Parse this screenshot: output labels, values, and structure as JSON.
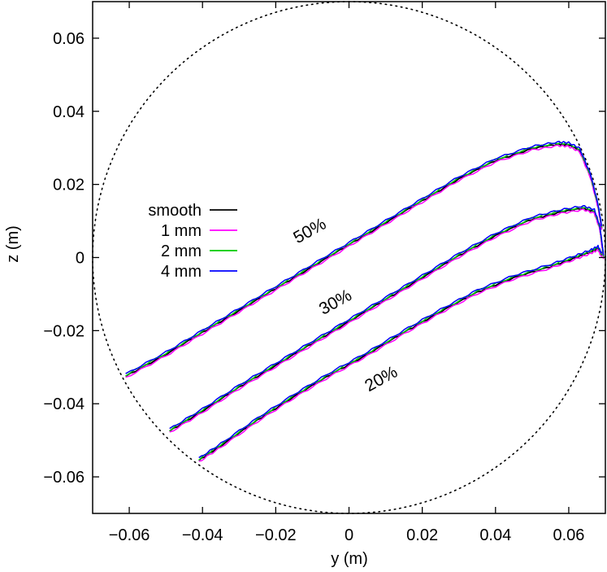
{
  "chart_data": {
    "type": "line",
    "xlabel": "y (m)",
    "ylabel": "z (m)",
    "xlim": [
      -0.07,
      0.07
    ],
    "ylim": [
      -0.07,
      0.07
    ],
    "x_ticks": [
      -0.06,
      -0.04,
      -0.02,
      0,
      0.02,
      0.04,
      0.06
    ],
    "x_tick_labels": [
      "−0.06",
      "−0.04",
      "−0.02",
      "0",
      "0.02",
      "0.04",
      "0.06"
    ],
    "y_ticks": [
      -0.06,
      -0.04,
      -0.02,
      0,
      0.02,
      0.04,
      0.06
    ],
    "y_tick_labels": [
      "−0.06",
      "−0.04",
      "−0.02",
      "0",
      "0.02",
      "0.04",
      "0.06"
    ],
    "grid": false,
    "legend_position": "left",
    "boundary_circle": {
      "center": [
        0,
        0
      ],
      "radius": 0.07,
      "style": "dotted"
    },
    "series": [
      {
        "name": "smooth",
        "color": "#000000"
      },
      {
        "name": "1 mm",
        "color": "#ff00ff"
      },
      {
        "name": "2 mm",
        "color": "#00cc00"
      },
      {
        "name": "4 mm",
        "color": "#0000ff"
      }
    ],
    "curves": [
      {
        "label": "50%",
        "label_pos": [
          -0.01,
          0.006
        ],
        "points": [
          [
            -0.061,
            -0.0325
          ],
          [
            -0.05,
            -0.0265
          ],
          [
            -0.04,
            -0.0205
          ],
          [
            -0.03,
            -0.0145
          ],
          [
            -0.02,
            -0.0085
          ],
          [
            -0.01,
            -0.0025
          ],
          [
            0,
            0.0035
          ],
          [
            0.01,
            0.0095
          ],
          [
            0.02,
            0.0155
          ],
          [
            0.03,
            0.0215
          ],
          [
            0.04,
            0.0265
          ],
          [
            0.05,
            0.0298
          ],
          [
            0.057,
            0.031
          ],
          [
            0.06,
            0.0308
          ],
          [
            0.063,
            0.0293
          ],
          [
            0.066,
            0.022
          ],
          [
            0.068,
            0.014
          ],
          [
            0.069,
            0.008
          ]
        ]
      },
      {
        "label": "30%",
        "label_pos": [
          -0.003,
          -0.0135
        ],
        "points": [
          [
            -0.049,
            -0.0475
          ],
          [
            -0.04,
            -0.042
          ],
          [
            -0.03,
            -0.0355
          ],
          [
            -0.02,
            -0.0295
          ],
          [
            -0.01,
            -0.0235
          ],
          [
            0,
            -0.0175
          ],
          [
            0.01,
            -0.0115
          ],
          [
            0.02,
            -0.0055
          ],
          [
            0.03,
            0.0005
          ],
          [
            0.04,
            0.006
          ],
          [
            0.05,
            0.0105
          ],
          [
            0.058,
            0.0125
          ],
          [
            0.064,
            0.0135
          ],
          [
            0.067,
            0.0125
          ],
          [
            0.0685,
            0.008
          ],
          [
            0.0695,
            0.0
          ]
        ]
      },
      {
        "label": "20%",
        "label_pos": [
          0.0095,
          -0.0345
        ],
        "points": [
          [
            -0.041,
            -0.0555
          ],
          [
            -0.035,
            -0.0515
          ],
          [
            -0.025,
            -0.0445
          ],
          [
            -0.015,
            -0.038
          ],
          [
            -0.005,
            -0.032
          ],
          [
            0.005,
            -0.0265
          ],
          [
            0.015,
            -0.0205
          ],
          [
            0.025,
            -0.0148
          ],
          [
            0.035,
            -0.0095
          ],
          [
            0.045,
            -0.0055
          ],
          [
            0.055,
            -0.0025
          ],
          [
            0.062,
            0.0
          ],
          [
            0.066,
            0.0015
          ],
          [
            0.068,
            0.0025
          ],
          [
            0.069,
            0.0005
          ]
        ]
      }
    ]
  }
}
